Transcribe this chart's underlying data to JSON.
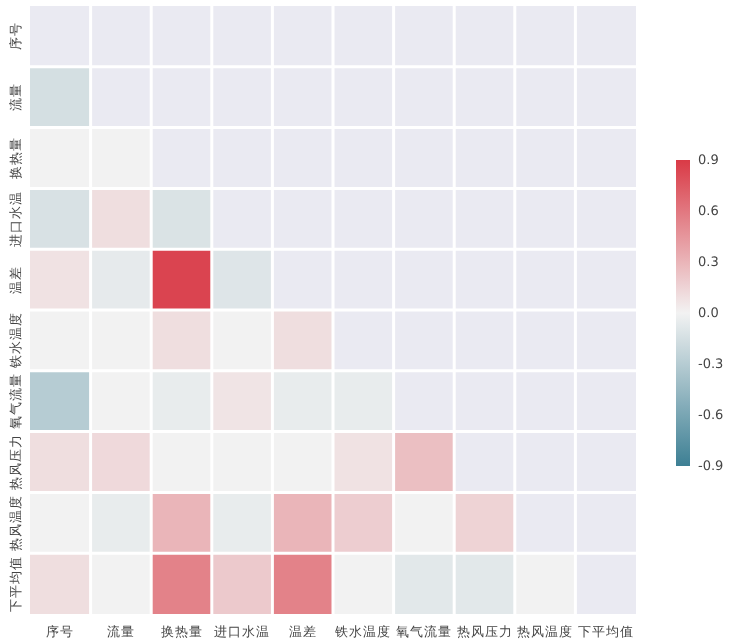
{
  "chart_data": {
    "type": "heatmap",
    "categories": [
      "序号",
      "流量",
      "换热量",
      "进口水温",
      "温差",
      "铁水温度",
      "氧气流量",
      "热风压力",
      "热风温度",
      "下平均值"
    ],
    "y_categories": [
      "序号",
      "流量",
      "换热量",
      "进口水温",
      "温差",
      "铁水温度",
      "氧气流量",
      "热风压力",
      "热风温度",
      "下平均值"
    ],
    "cells": [
      [
        null,
        null,
        null,
        null,
        null,
        null,
        null,
        null,
        null,
        null
      ],
      [
        -0.15,
        null,
        null,
        null,
        null,
        null,
        null,
        null,
        null,
        null
      ],
      [
        0.0,
        0.0,
        null,
        null,
        null,
        null,
        null,
        null,
        null,
        null
      ],
      [
        -0.13,
        0.1,
        -0.12,
        null,
        null,
        null,
        null,
        null,
        null,
        null
      ],
      [
        0.08,
        -0.06,
        0.85,
        -0.1,
        null,
        null,
        null,
        null,
        null,
        null
      ],
      [
        0.0,
        0.0,
        0.1,
        0.0,
        0.1,
        null,
        null,
        null,
        null,
        null
      ],
      [
        -0.3,
        0.0,
        -0.05,
        0.07,
        -0.05,
        -0.05,
        null,
        null,
        null,
        null
      ],
      [
        0.1,
        0.12,
        0.0,
        0.0,
        0.0,
        0.08,
        0.25,
        null,
        null,
        null
      ],
      [
        0.0,
        -0.05,
        0.3,
        -0.05,
        0.3,
        0.18,
        0.0,
        0.15,
        null,
        null
      ],
      [
        0.1,
        0.0,
        0.55,
        0.2,
        0.55,
        0.0,
        -0.08,
        -0.08,
        0.0,
        null
      ]
    ],
    "clim": [
      -0.9,
      0.9
    ],
    "cticks": [
      0.9,
      0.6,
      0.3,
      {
        "value": 0,
        "label": "0.0"
      },
      -0.3,
      -0.6,
      -0.9
    ]
  }
}
